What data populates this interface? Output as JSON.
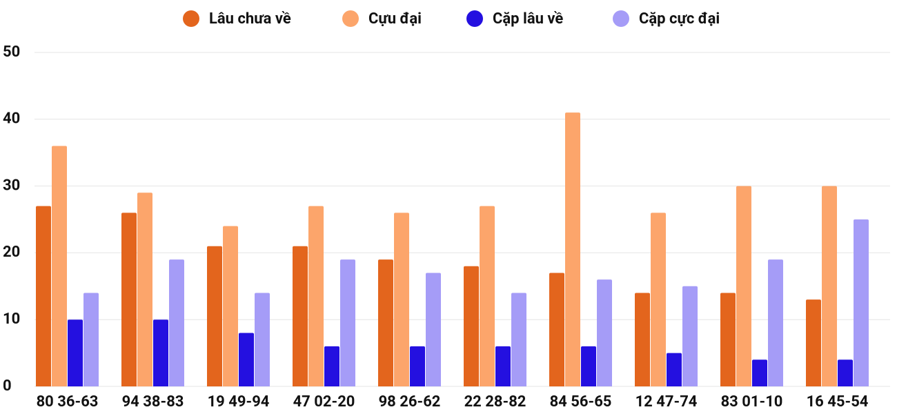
{
  "chart_data": {
    "type": "bar",
    "categories": [
      "80 36-63",
      "94 38-83",
      "19 49-94",
      "47 02-20",
      "98 26-62",
      "22 28-82",
      "84 56-65",
      "12 47-74",
      "83 01-10",
      "16 45-54"
    ],
    "series": [
      {
        "name": "Lâu chưa về",
        "color": "#e3651d",
        "values": [
          27,
          26,
          21,
          21,
          19,
          18,
          17,
          14,
          14,
          13
        ]
      },
      {
        "name": "Cựu đại",
        "color": "#fca56b",
        "values": [
          36,
          29,
          24,
          27,
          26,
          27,
          41,
          26,
          30,
          30
        ]
      },
      {
        "name": "Cặp lâu về",
        "color": "#2410e0",
        "values": [
          10,
          10,
          8,
          6,
          6,
          6,
          6,
          5,
          4,
          4
        ]
      },
      {
        "name": "Cặp cực đại",
        "color": "#a59cf7",
        "values": [
          14,
          19,
          14,
          19,
          17,
          14,
          16,
          15,
          19,
          25
        ]
      }
    ],
    "ylim": [
      0,
      50
    ],
    "yticks": [
      0,
      10,
      20,
      30,
      40,
      50
    ],
    "grid": true,
    "legend": "top"
  }
}
